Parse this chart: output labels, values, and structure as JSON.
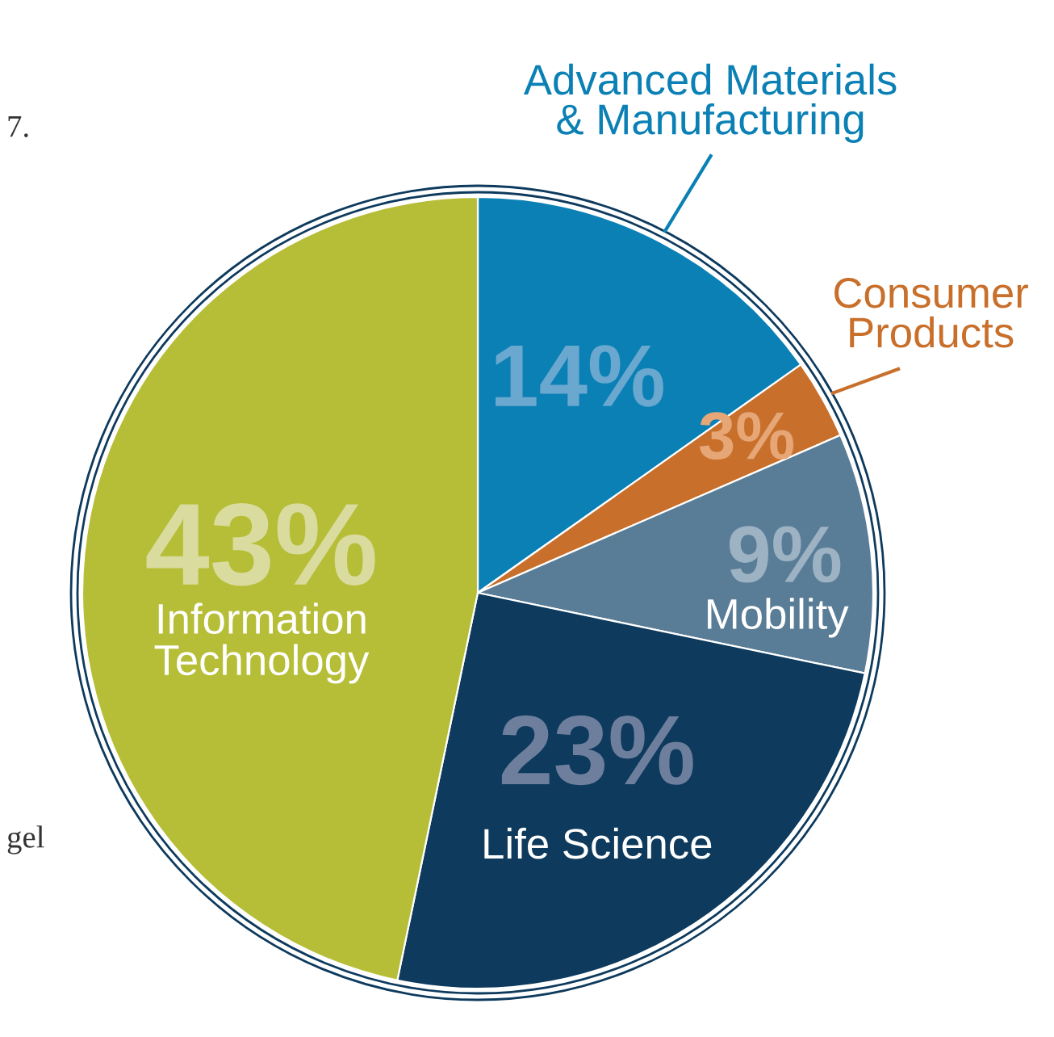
{
  "chart_data": {
    "type": "pie",
    "categories": [
      "Advanced Materials\n& Manufacturing",
      "Consumer\nProducts",
      "Mobility",
      "Life Science",
      "Information\nTechnology"
    ],
    "values": [
      14,
      3,
      9,
      23,
      43
    ],
    "value_labels": [
      "14%",
      "3%",
      "9%",
      "23%",
      "43%"
    ],
    "colors": [
      "#0a80b5",
      "#c8702b",
      "#5a7d97",
      "#0d3a5d",
      "#b6bd36"
    ],
    "annotations": [
      "7.",
      "gel"
    ]
  }
}
